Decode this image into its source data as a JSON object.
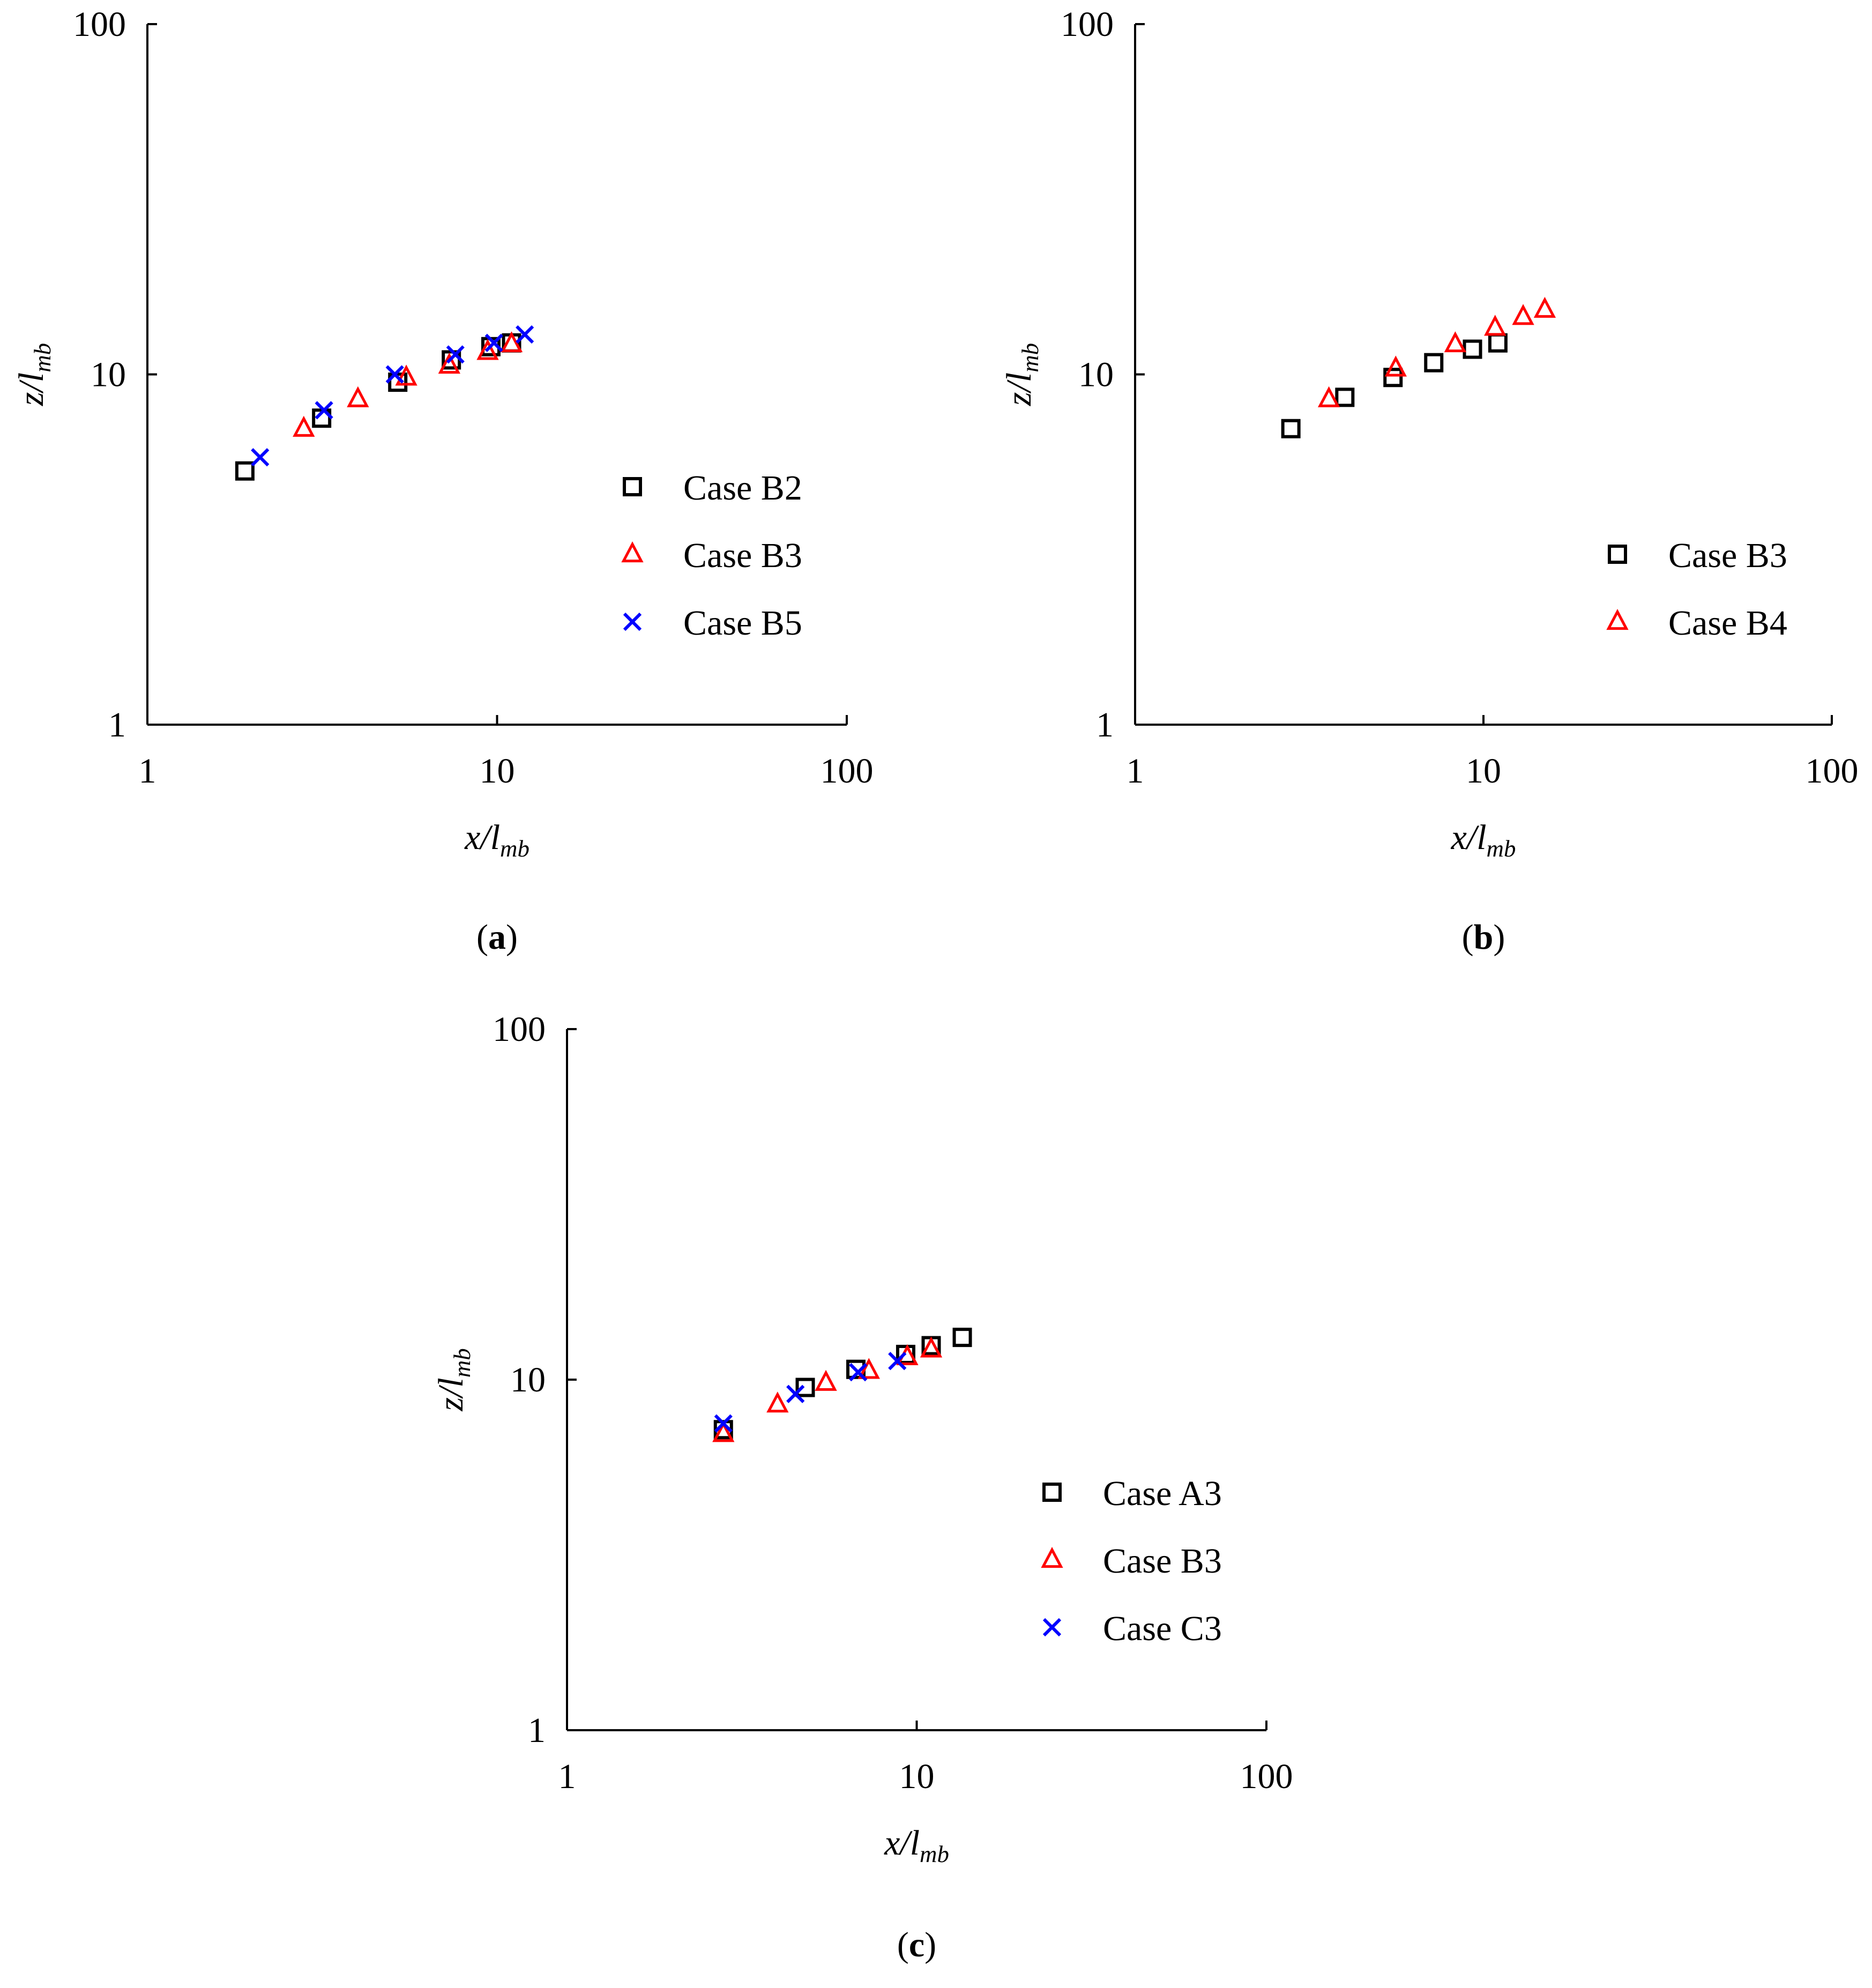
{
  "chart_data": [
    {
      "panel_label": "a",
      "type": "scatter",
      "xscale": "log",
      "yscale": "log",
      "xlim": [
        1,
        100
      ],
      "ylim": [
        1,
        100
      ],
      "xticks": [
        "1",
        "10",
        "100"
      ],
      "yticks": [
        "1",
        "10",
        "100"
      ],
      "xlabel": {
        "main": "x/l",
        "sub": "mb"
      },
      "ylabel": {
        "main": "z/l",
        "sub": "mb"
      },
      "grid": false,
      "legend_position": "bottom-right",
      "series": [
        {
          "name": "Case B2",
          "marker": "square",
          "color": "#000000",
          "points": [
            [
              1.9,
              5.3
            ],
            [
              3.15,
              7.5
            ],
            [
              5.2,
              9.5
            ],
            [
              7.4,
              11.0
            ],
            [
              9.6,
              12.0
            ],
            [
              11.0,
              12.3
            ]
          ]
        },
        {
          "name": "Case B3",
          "marker": "triangle",
          "color": "#ff0000",
          "points": [
            [
              2.8,
              7.0
            ],
            [
              4.0,
              8.5
            ],
            [
              5.5,
              9.8
            ],
            [
              7.3,
              10.6
            ],
            [
              9.4,
              11.6
            ],
            [
              11.0,
              12.2
            ]
          ]
        },
        {
          "name": "Case B5",
          "marker": "cross",
          "color": "#0000ff",
          "points": [
            [
              2.1,
              5.8
            ],
            [
              3.2,
              7.9
            ],
            [
              5.1,
              10.0
            ],
            [
              7.6,
              11.4
            ],
            [
              9.8,
              12.3
            ],
            [
              12.0,
              13.0
            ]
          ]
        }
      ]
    },
    {
      "panel_label": "b",
      "type": "scatter",
      "xscale": "log",
      "yscale": "log",
      "xlim": [
        1,
        100
      ],
      "ylim": [
        1,
        100
      ],
      "xticks": [
        "1",
        "10",
        "100"
      ],
      "yticks": [
        "1",
        "10",
        "100"
      ],
      "xlabel": {
        "main": "x/l",
        "sub": "mb"
      },
      "ylabel": {
        "main": "z/l",
        "sub": "mb"
      },
      "grid": false,
      "legend_position": "bottom-right",
      "series": [
        {
          "name": "Case B3",
          "marker": "square",
          "color": "#000000",
          "points": [
            [
              2.8,
              7.0
            ],
            [
              4.0,
              8.6
            ],
            [
              5.5,
              9.8
            ],
            [
              7.2,
              10.8
            ],
            [
              9.3,
              11.8
            ],
            [
              11.0,
              12.3
            ]
          ]
        },
        {
          "name": "Case B4",
          "marker": "triangle",
          "color": "#ff0000",
          "points": [
            [
              3.6,
              8.5
            ],
            [
              5.6,
              10.4
            ],
            [
              8.3,
              12.2
            ],
            [
              10.8,
              13.6
            ],
            [
              13.0,
              14.6
            ],
            [
              15.0,
              15.3
            ]
          ]
        }
      ]
    },
    {
      "panel_label": "c",
      "type": "scatter",
      "xscale": "log",
      "yscale": "log",
      "xlim": [
        1,
        100
      ],
      "ylim": [
        1,
        100
      ],
      "xticks": [
        "1",
        "10",
        "100"
      ],
      "yticks": [
        "1",
        "10",
        "100"
      ],
      "xlabel": {
        "main": "x/l",
        "sub": "mb"
      },
      "ylabel": {
        "main": "z/l",
        "sub": "mb"
      },
      "grid": false,
      "legend_position": "bottom-right",
      "series": [
        {
          "name": "Case A3",
          "marker": "square",
          "color": "#000000",
          "points": [
            [
              2.8,
              7.2
            ],
            [
              4.8,
              9.5
            ],
            [
              6.7,
              10.7
            ],
            [
              9.3,
              11.8
            ],
            [
              11.0,
              12.5
            ],
            [
              13.5,
              13.2
            ]
          ]
        },
        {
          "name": "Case B3",
          "marker": "triangle",
          "color": "#ff0000",
          "points": [
            [
              2.8,
              7.0
            ],
            [
              4.0,
              8.5
            ],
            [
              5.5,
              9.8
            ],
            [
              7.3,
              10.6
            ],
            [
              9.4,
              11.6
            ],
            [
              11.0,
              12.2
            ]
          ]
        },
        {
          "name": "Case C3",
          "marker": "cross",
          "color": "#0000ff",
          "points": [
            [
              2.8,
              7.5
            ],
            [
              4.5,
              9.1
            ],
            [
              6.8,
              10.5
            ],
            [
              8.8,
              11.3
            ]
          ]
        }
      ]
    }
  ]
}
